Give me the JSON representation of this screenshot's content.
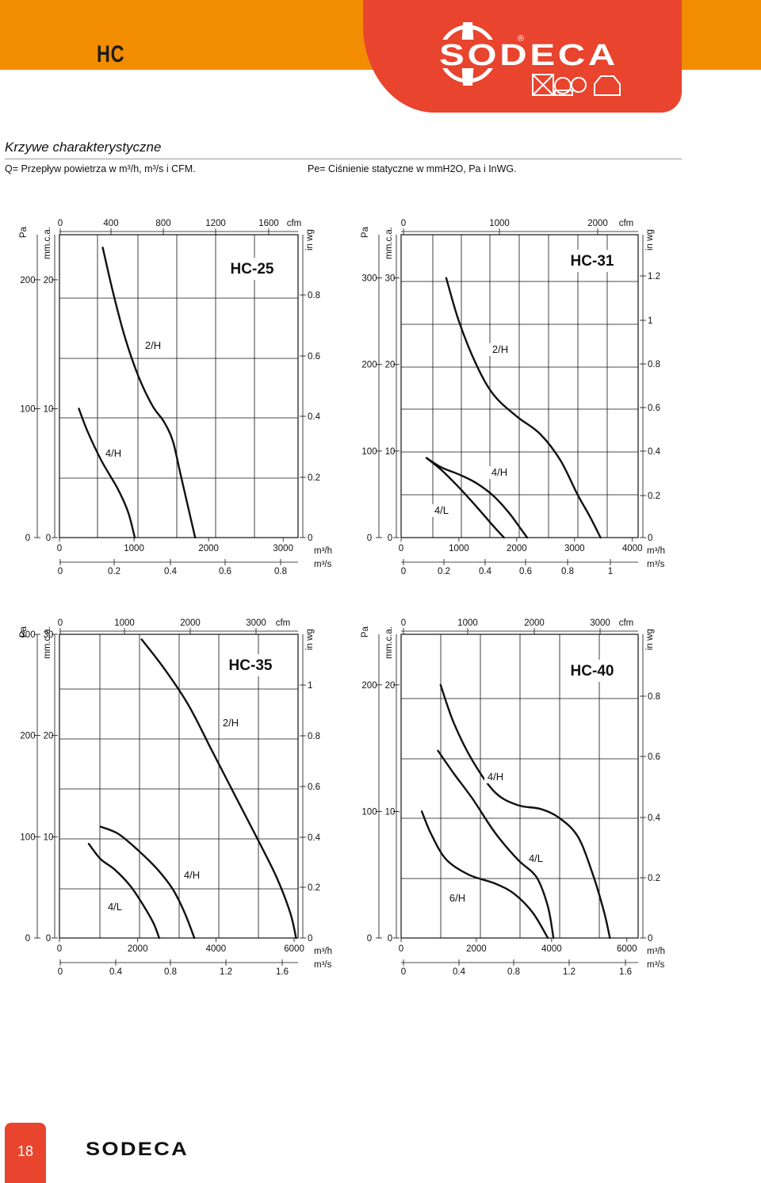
{
  "header": {
    "title": "HC",
    "brand": "SODECA",
    "brand_color": "#e8442e",
    "bar_color": "#f28c00"
  },
  "section": {
    "title": "Krzywe charakterystyczne",
    "flow_legend": "Q= Przepływ powietrza w m³/h, m³/s i CFM.",
    "pressure_legend": "Pe= Ciśnienie statyczne w mmH2O, Pa i InWG."
  },
  "footer": {
    "page_number": "18",
    "brand": "SODECA"
  },
  "chart_data": [
    {
      "type": "line",
      "title": "HC-25",
      "xlim": [
        0,
        3200
      ],
      "ylim": [
        0,
        23.5
      ],
      "x_label_m3h": "m³/h",
      "x_label_m3s": "m³/s",
      "x_label_cfm": "cfm",
      "y_label_pa": "Pa",
      "y_label_mm": "mm.c.a.",
      "y_label_inwg": "in wg",
      "ticks_m3h": [
        "0",
        "1000",
        "2000",
        "3000"
      ],
      "ticks_m3s": [
        "0",
        "0.2",
        "0.4",
        "0.6",
        "0.8"
      ],
      "ticks_cfm": [
        "0",
        "400",
        "800",
        "1200",
        "1600"
      ],
      "ticks_pa": [
        "0",
        "100",
        "200"
      ],
      "ticks_mm": [
        "0",
        "10",
        "20"
      ],
      "ticks_inwg": [
        "0",
        "0.2",
        "0.4",
        "0.6",
        "0.8"
      ],
      "series": [
        {
          "name": "2/H",
          "points": [
            [
              580,
              22.5
            ],
            [
              720,
              19
            ],
            [
              880,
              15.5
            ],
            [
              1060,
              12.5
            ],
            [
              1250,
              10.2
            ],
            [
              1400,
              9
            ],
            [
              1520,
              7.5
            ],
            [
              1620,
              5
            ],
            [
              1720,
              2.5
            ],
            [
              1820,
              0
            ]
          ]
        },
        {
          "name": "4/H",
          "points": [
            [
              260,
              10
            ],
            [
              380,
              8.2
            ],
            [
              560,
              6
            ],
            [
              780,
              3.8
            ],
            [
              920,
              2
            ],
            [
              1010,
              0
            ]
          ]
        }
      ]
    },
    {
      "type": "line",
      "title": "HC-31",
      "xlim": [
        0,
        4100
      ],
      "ylim": [
        0,
        35
      ],
      "x_label_m3h": "m³/h",
      "x_label_m3s": "m³/s",
      "x_label_cfm": "cfm",
      "y_label_pa": "Pa",
      "y_label_mm": "mm.c.a.",
      "y_label_inwg": "in wg",
      "ticks_m3h": [
        "0",
        "1000",
        "2000",
        "3000",
        "4000"
      ],
      "ticks_m3s": [
        "0",
        "0.2",
        "0.4",
        "0.6",
        "0.8",
        "1"
      ],
      "ticks_cfm": [
        "0",
        "1000",
        "2000"
      ],
      "ticks_pa": [
        "0",
        "100",
        "200",
        "300"
      ],
      "ticks_mm": [
        "0",
        "10",
        "20",
        "30"
      ],
      "ticks_inwg": [
        "0",
        "0.2",
        "0.4",
        "0.6",
        "0.8",
        "1",
        "1.2"
      ],
      "series": [
        {
          "name": "2/H",
          "points": [
            [
              780,
              30
            ],
            [
              1000,
              25
            ],
            [
              1300,
              20
            ],
            [
              1600,
              16.5
            ],
            [
              2000,
              14
            ],
            [
              2400,
              12
            ],
            [
              2750,
              9
            ],
            [
              3050,
              5
            ],
            [
              3260,
              2.5
            ],
            [
              3450,
              0
            ]
          ]
        },
        {
          "name": "4/H",
          "points": [
            [
              440,
              9.2
            ],
            [
              700,
              8.1
            ],
            [
              1000,
              7.3
            ],
            [
              1300,
              6.3
            ],
            [
              1600,
              4.8
            ],
            [
              1850,
              3
            ],
            [
              2050,
              1.2
            ],
            [
              2180,
              0
            ]
          ]
        },
        {
          "name": "4/L",
          "points": [
            [
              440,
              9.2
            ],
            [
              700,
              7.8
            ],
            [
              1000,
              5.8
            ],
            [
              1300,
              3.6
            ],
            [
              1600,
              1.3
            ],
            [
              1780,
              0
            ]
          ]
        }
      ]
    },
    {
      "type": "line",
      "title": "HC-35",
      "xlim": [
        0,
        6100
      ],
      "ylim": [
        0,
        30
      ],
      "x_label_m3h": "m³/h",
      "x_label_m3s": "m³/s",
      "x_label_cfm": "cfm",
      "y_label_pa": "Pa",
      "y_label_mm": "mm.c.a.",
      "y_label_inwg": "in wg",
      "ticks_m3h": [
        "0",
        "2000",
        "4000",
        "6000"
      ],
      "ticks_m3s": [
        "0",
        "0.4",
        "0.8",
        "1.2",
        "1.6"
      ],
      "ticks_cfm": [
        "0",
        "1000",
        "2000",
        "3000"
      ],
      "ticks_pa": [
        "0",
        "100",
        "200",
        "300"
      ],
      "ticks_mm": [
        "0",
        "10",
        "20",
        "30"
      ],
      "ticks_inwg": [
        "0",
        "0.2",
        "0.4",
        "0.6",
        "0.8",
        "1"
      ],
      "series": [
        {
          "name": "2/H",
          "points": [
            [
              2100,
              29.5
            ],
            [
              2700,
              26.5
            ],
            [
              3300,
              23
            ],
            [
              3900,
              18.5
            ],
            [
              4500,
              14
            ],
            [
              5100,
              9.5
            ],
            [
              5550,
              6
            ],
            [
              5900,
              2.5
            ],
            [
              6050,
              0
            ]
          ]
        },
        {
          "name": "4/H",
          "points": [
            [
              1050,
              11
            ],
            [
              1500,
              10.3
            ],
            [
              2000,
              8.7
            ],
            [
              2500,
              6.8
            ],
            [
              2900,
              4.8
            ],
            [
              3200,
              2.5
            ],
            [
              3450,
              0
            ]
          ]
        },
        {
          "name": "4/L",
          "points": [
            [
              750,
              9.3
            ],
            [
              1050,
              7.8
            ],
            [
              1400,
              6.8
            ],
            [
              1800,
              5.2
            ],
            [
              2100,
              3.5
            ],
            [
              2400,
              1.5
            ],
            [
              2550,
              0
            ]
          ]
        }
      ]
    },
    {
      "type": "line",
      "title": "HC-40",
      "xlim": [
        0,
        6300
      ],
      "ylim": [
        0,
        24
      ],
      "x_label_m3h": "m³/h",
      "x_label_m3s": "m³/s",
      "x_label_cfm": "cfm",
      "y_label_pa": "Pa",
      "y_label_mm": "mm.c.a.",
      "y_label_inwg": "in wg",
      "ticks_m3h": [
        "0",
        "2000",
        "4000",
        "6000"
      ],
      "ticks_m3s": [
        "0",
        "0.4",
        "0.8",
        "1.2",
        "1.6"
      ],
      "ticks_cfm": [
        "0",
        "1000",
        "2000",
        "3000"
      ],
      "ticks_pa": [
        "0",
        "100",
        "200"
      ],
      "ticks_mm": [
        "0",
        "10",
        "20"
      ],
      "ticks_inwg": [
        "0",
        "0.2",
        "0.4",
        "0.6",
        "0.8"
      ],
      "series": [
        {
          "name": "4/H",
          "points": [
            [
              1050,
              20
            ],
            [
              1400,
              17
            ],
            [
              1900,
              14
            ],
            [
              2500,
              11.5
            ],
            [
              3100,
              10.5
            ],
            [
              3700,
              10.2
            ],
            [
              4200,
              9.5
            ],
            [
              4700,
              8
            ],
            [
              5100,
              5
            ],
            [
              5400,
              2
            ],
            [
              5550,
              0
            ]
          ]
        },
        {
          "name": "4/L",
          "points": [
            [
              980,
              14.8
            ],
            [
              1400,
              13
            ],
            [
              1900,
              11
            ],
            [
              2500,
              8.3
            ],
            [
              3100,
              6.2
            ],
            [
              3600,
              4.8
            ],
            [
              3900,
              2.5
            ],
            [
              4050,
              0
            ]
          ]
        },
        {
          "name": "6/H",
          "points": [
            [
              550,
              10
            ],
            [
              800,
              8.2
            ],
            [
              1200,
              6.2
            ],
            [
              1800,
              5
            ],
            [
              2500,
              4.3
            ],
            [
              3000,
              3.5
            ],
            [
              3500,
              2
            ],
            [
              3900,
              0
            ]
          ]
        }
      ]
    }
  ]
}
